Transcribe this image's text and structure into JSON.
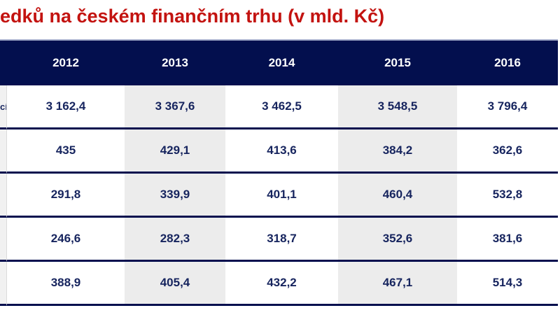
{
  "title": "edků na českém finančním trhu (v mld. Kč)",
  "table": {
    "row_label_fragment": "cí",
    "columns": [
      "2012",
      "2013",
      "2014",
      "2015",
      "2016"
    ],
    "rows": [
      {
        "values": [
          "3 162,4",
          "3 367,6",
          "3 462,5",
          "3 548,5",
          "3 796,4"
        ]
      },
      {
        "values": [
          "435",
          "429,1",
          "413,6",
          "384,2",
          "362,6"
        ]
      },
      {
        "values": [
          "291,8",
          "339,9",
          "401,1",
          "460,4",
          "532,8"
        ]
      },
      {
        "values": [
          "246,6",
          "282,3",
          "318,7",
          "352,6",
          "381,6"
        ]
      },
      {
        "values": [
          "388,9",
          "405,4",
          "432,2",
          "467,1",
          "514,3"
        ]
      }
    ]
  },
  "chart_data": {
    "type": "table",
    "title": "edků na českém finančním trhu (v mld. Kč)",
    "categories": [
      "2012",
      "2013",
      "2014",
      "2015",
      "2016"
    ],
    "series": [
      {
        "name": "cí",
        "values": [
          3162.4,
          3367.6,
          3462.5,
          3548.5,
          3796.4
        ]
      },
      {
        "name": "",
        "values": [
          435.0,
          429.1,
          413.6,
          384.2,
          362.6
        ]
      },
      {
        "name": "",
        "values": [
          291.8,
          339.9,
          401.1,
          460.4,
          532.8
        ]
      },
      {
        "name": "",
        "values": [
          246.6,
          282.3,
          318.7,
          352.6,
          381.6
        ]
      },
      {
        "name": "",
        "values": [
          388.9,
          405.4,
          432.2,
          467.1,
          514.3
        ]
      }
    ]
  },
  "colors": {
    "title_red": "#C31310",
    "header_navy": "#030F4E",
    "cell_text_navy": "#16245E",
    "alt_column_gray": "#ECECEC",
    "label_strip_gray": "#F1F1F1",
    "border_navy": "#030F4E",
    "header_top_line": "#A8B0CD"
  }
}
